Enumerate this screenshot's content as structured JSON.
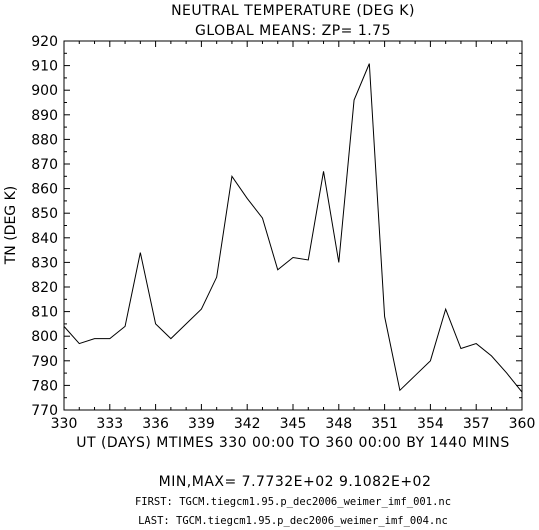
{
  "chart_data": {
    "type": "line",
    "title": "NEUTRAL TEMPERATURE (DEG K)",
    "subtitle": "GLOBAL MEANS: ZP=  1.75",
    "ylabel": "TN (DEG K)",
    "xlabel": "UT (DAYS) MTIMES 330 00:00 TO 360 00:00 BY 1440 MINS",
    "xlim": [
      330,
      360
    ],
    "ylim": [
      770,
      920
    ],
    "xticks": [
      "330",
      "333",
      "336",
      "339",
      "342",
      "345",
      "348",
      "351",
      "354",
      "357",
      "360"
    ],
    "yticks": [
      "770",
      "780",
      "790",
      "800",
      "810",
      "820",
      "830",
      "840",
      "850",
      "860",
      "870",
      "880",
      "890",
      "900",
      "910",
      "920"
    ],
    "x": [
      330,
      331,
      332,
      333,
      334,
      335,
      336,
      337,
      338,
      339,
      340,
      341,
      342,
      343,
      344,
      345,
      346,
      347,
      348,
      349,
      350,
      351,
      352,
      353,
      354,
      355,
      356,
      357,
      358,
      359,
      360
    ],
    "y": [
      804,
      797,
      799,
      799,
      804,
      834,
      805,
      799,
      805,
      811,
      824,
      865,
      856,
      848,
      827,
      832,
      831,
      867,
      830,
      896,
      910.8,
      808,
      778,
      784,
      790,
      811,
      795,
      797,
      792,
      785,
      777.3
    ],
    "minmax_label": "MIN,MAX=  7.7732E+02   9.1082E+02",
    "first_file": "FIRST: TGCM.tiegcm1.95.p_dec2006_weimer_imf_001.nc",
    "last_file": "LAST:  TGCM.tiegcm1.95.p_dec2006_weimer_imf_004.nc"
  }
}
